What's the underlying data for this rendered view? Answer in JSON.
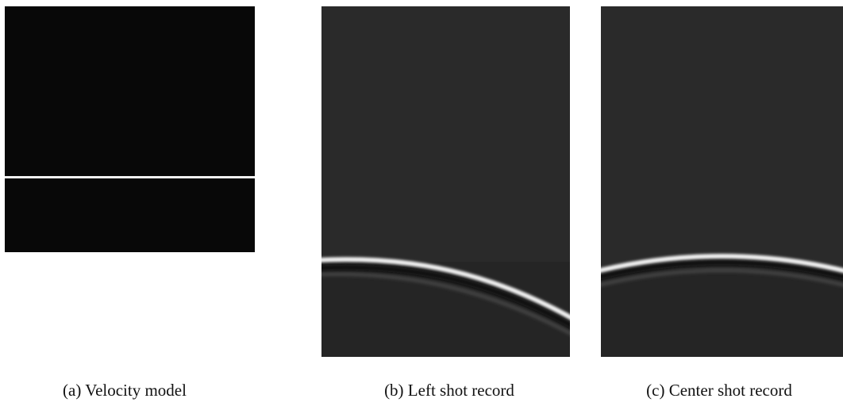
{
  "captions": [
    "(a) Velocity model",
    "(b) Left shot record",
    "(c) Center shot record"
  ]
}
